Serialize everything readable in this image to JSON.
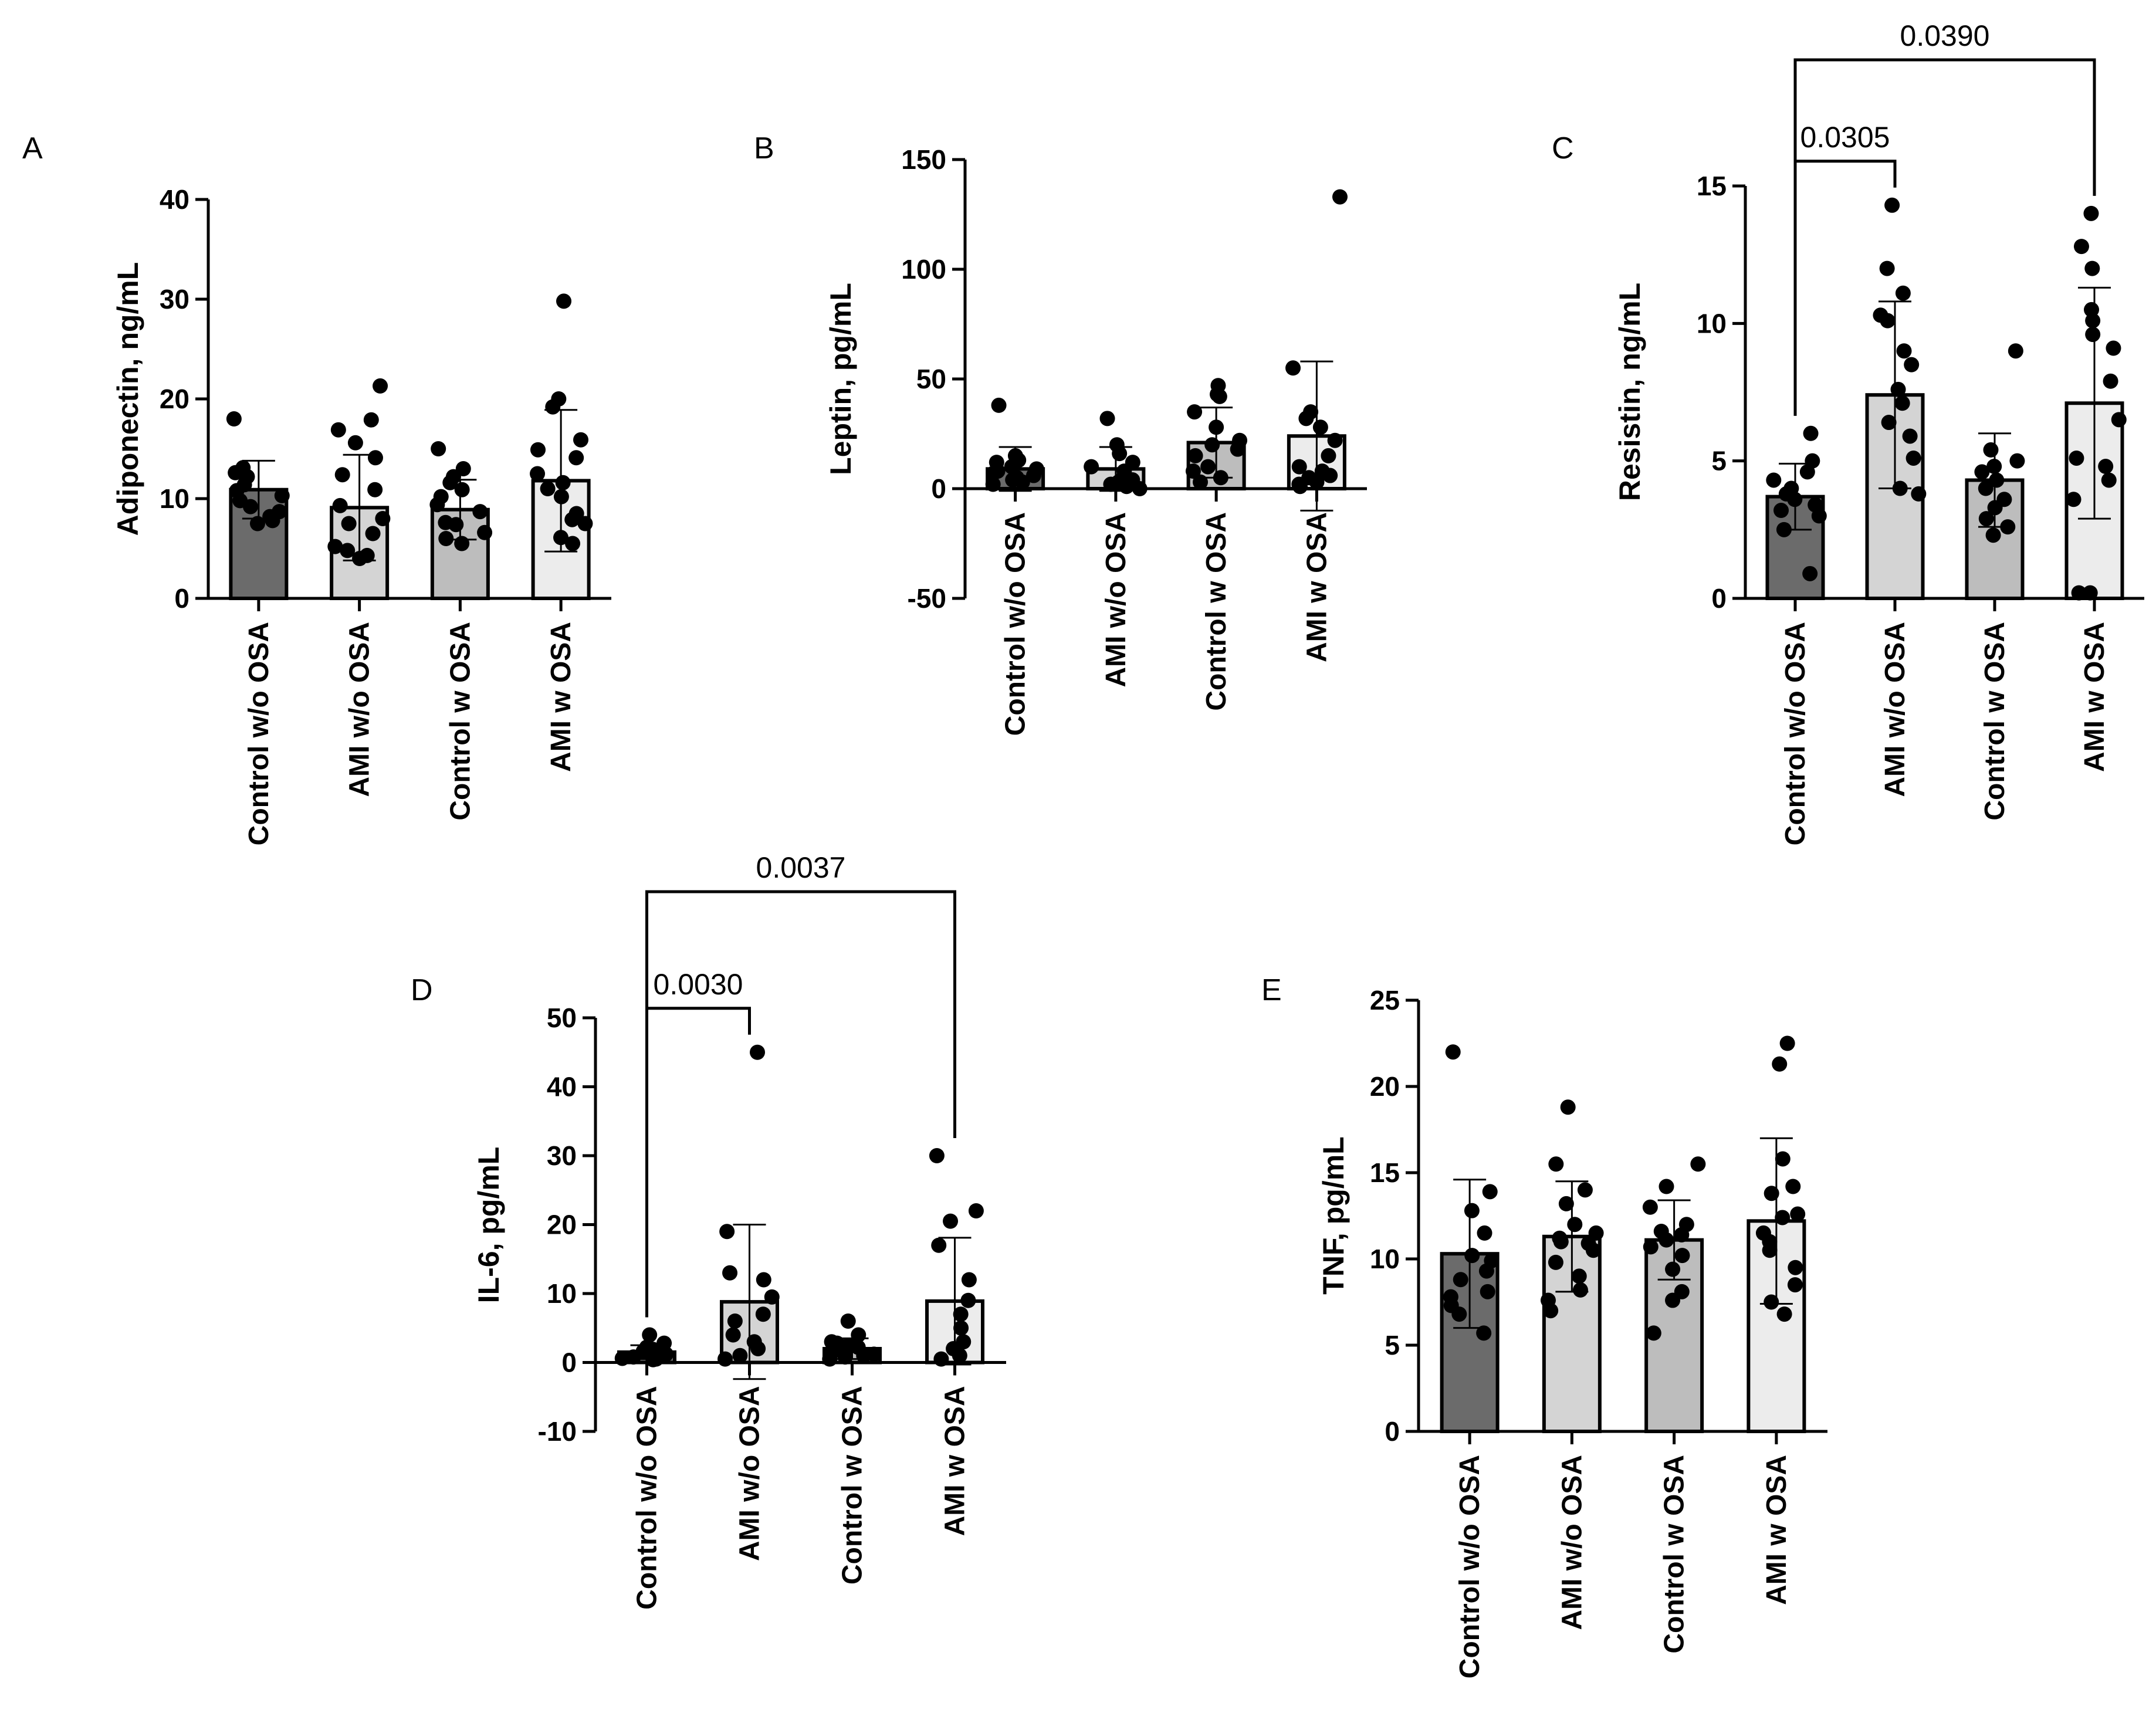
{
  "colors": {
    "axis": "#000000",
    "point": "#000000",
    "bar_fills": [
      "#6b6b6b",
      "#d4d4d4",
      "#bdbdbd",
      "#ececec"
    ]
  },
  "chart_data": [
    {
      "panel": "A",
      "type": "bar",
      "categories": [
        "Control w/o OSA",
        "AMI w/o OSA",
        "Control w OSA",
        "AMI w OSA"
      ],
      "values": [
        10.9,
        9.1,
        8.9,
        11.8
      ],
      "sd": [
        2.9,
        5.3,
        3.0,
        7.1
      ],
      "points": [
        [
          18.0,
          13.1,
          12.6,
          12.2,
          11.4,
          10.8,
          10.3,
          9.8,
          9.2,
          8.7,
          8.2,
          7.8,
          7.5
        ],
        [
          21.3,
          17.9,
          16.9,
          15.6,
          14.1,
          12.4,
          10.9,
          9.3,
          8.0,
          7.5,
          6.5,
          5.2,
          4.8,
          4.3,
          4.0
        ],
        [
          15.0,
          13.0,
          12.2,
          11.6,
          10.9,
          10.2,
          9.4,
          8.7,
          7.6,
          7.4,
          6.6,
          6.0,
          5.5
        ],
        [
          29.8,
          20.0,
          19.2,
          15.9,
          14.9,
          14.1,
          12.5,
          11.6,
          11.0,
          10.2,
          8.5,
          7.9,
          7.5,
          6.1,
          5.5
        ]
      ],
      "ylabel": "Adiponectin, ng/mL",
      "yticks": [
        0,
        10,
        20,
        30,
        40
      ],
      "ylim": [
        0,
        40
      ],
      "comparisons": []
    },
    {
      "panel": "B",
      "type": "bar",
      "categories": [
        "Control w/o OSA",
        "AMI w/o OSA",
        "Control w OSA",
        "AMI w OSA"
      ],
      "values": [
        9,
        9,
        21,
        24
      ],
      "sd": [
        10,
        10,
        16,
        34
      ],
      "points": [
        [
          38,
          15,
          13,
          12,
          10,
          9,
          8,
          7,
          6,
          5,
          4,
          3,
          2
        ],
        [
          32,
          20,
          16,
          12,
          10,
          8,
          6,
          4,
          3,
          2,
          1,
          0
        ],
        [
          47,
          43,
          42,
          35,
          28,
          22,
          20,
          18,
          15,
          10,
          8,
          5,
          3
        ],
        [
          133,
          55,
          35,
          32,
          28,
          22,
          15,
          10,
          8,
          6,
          5,
          3,
          2,
          1
        ]
      ],
      "ylabel": "Leptin, pg/mL",
      "yticks": [
        -50,
        0,
        50,
        100,
        150
      ],
      "ylim": [
        -50,
        150
      ],
      "comparisons": []
    },
    {
      "panel": "C",
      "type": "bar",
      "categories": [
        "Control w/o OSA",
        "AMI w/o OSA",
        "Control w OSA",
        "AMI w OSA"
      ],
      "values": [
        3.7,
        7.4,
        4.3,
        7.1
      ],
      "sd": [
        1.2,
        3.4,
        1.7,
        4.2
      ],
      "points": [
        [
          6.0,
          5.0,
          4.6,
          4.3,
          4.0,
          3.8,
          3.6,
          3.4,
          3.2,
          3.0,
          2.5,
          0.9
        ],
        [
          14.3,
          12.0,
          11.1,
          10.3,
          10.1,
          9.0,
          8.5,
          7.6,
          7.1,
          6.4,
          5.9,
          5.1,
          4.0,
          3.8
        ],
        [
          9.0,
          5.4,
          5.0,
          4.8,
          4.6,
          4.3,
          4.0,
          3.6,
          3.3,
          2.9,
          2.6,
          2.3
        ],
        [
          14.0,
          12.8,
          12.0,
          10.5,
          10.1,
          9.6,
          9.1,
          7.9,
          6.5,
          5.1,
          4.8,
          4.3,
          3.6,
          0.2,
          0.2
        ]
      ],
      "ylabel": "Resistin, ng/mL",
      "yticks": [
        0,
        5,
        10,
        15
      ],
      "ylim": [
        0,
        15
      ],
      "comparisons": [
        {
          "from": 0,
          "to": 1,
          "label": "0.0305"
        },
        {
          "from": 0,
          "to": 3,
          "label": "0.0390"
        }
      ]
    },
    {
      "panel": "D",
      "type": "bar",
      "categories": [
        "Control w/o OSA",
        "AMI w/o OSA",
        "Control w OSA",
        "AMI w OSA"
      ],
      "values": [
        1.5,
        8.8,
        2.0,
        8.9
      ],
      "sd": [
        1.0,
        11.2,
        1.5,
        9.2
      ],
      "points": [
        [
          4.0,
          2.8,
          2.2,
          1.9,
          1.6,
          1.4,
          1.2,
          1.0,
          0.8,
          0.6,
          0.5,
          0.4
        ],
        [
          45.0,
          19.0,
          13.0,
          12.0,
          9.5,
          7.0,
          6.0,
          4.0,
          3.0,
          2.0,
          1.0,
          0.5
        ],
        [
          6.0,
          4.0,
          3.0,
          2.8,
          2.5,
          2.2,
          1.8,
          1.5,
          1.2,
          1.0,
          0.8,
          0.5
        ],
        [
          30.0,
          22.0,
          20.5,
          17.0,
          12.0,
          9.0,
          7.0,
          5.0,
          3.0,
          2.0,
          1.0,
          0.5
        ]
      ],
      "ylabel": "IL-6, pg/mL",
      "yticks": [
        -10,
        0,
        10,
        20,
        30,
        40,
        50
      ],
      "ylim": [
        -10,
        50
      ],
      "comparisons": [
        {
          "from": 0,
          "to": 1,
          "label": "0.0030"
        },
        {
          "from": 0,
          "to": 3,
          "label": "0.0037"
        }
      ]
    },
    {
      "panel": "E",
      "type": "bar",
      "categories": [
        "Control w/o OSA",
        "AMI w/o OSA",
        "Control w OSA",
        "AMI w OSA"
      ],
      "values": [
        10.3,
        11.3,
        11.1,
        12.2
      ],
      "sd": [
        4.3,
        3.2,
        2.3,
        4.8
      ],
      "points": [
        [
          22.0,
          13.9,
          12.8,
          11.5,
          10.2,
          9.9,
          9.3,
          8.8,
          8.1,
          7.8,
          7.3,
          6.8,
          5.7
        ],
        [
          18.8,
          15.5,
          14.0,
          13.2,
          12.0,
          11.5,
          11.2,
          11.0,
          10.9,
          10.5,
          9.8,
          9.0,
          8.2,
          7.6,
          7.0
        ],
        [
          15.5,
          14.2,
          13.0,
          12.0,
          11.6,
          11.4,
          11.1,
          10.7,
          10.2,
          9.4,
          8.1,
          7.6,
          5.7
        ],
        [
          22.5,
          21.3,
          15.8,
          14.2,
          13.8,
          12.6,
          12.4,
          11.5,
          11.0,
          10.5,
          9.5,
          8.5,
          7.5,
          6.8
        ]
      ],
      "ylabel": "TNF, pg/mL",
      "yticks": [
        0,
        5,
        10,
        15,
        20,
        25
      ],
      "ylim": [
        0,
        25
      ],
      "comparisons": []
    }
  ]
}
